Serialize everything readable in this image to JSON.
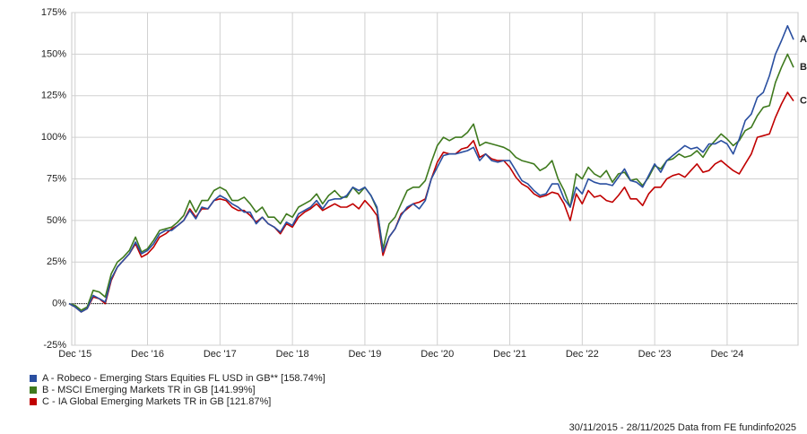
{
  "chart_data": {
    "type": "line",
    "x": [
      "2015-11",
      "2015-12",
      "2016-01",
      "2016-02",
      "2016-03",
      "2016-04",
      "2016-05",
      "2016-06",
      "2016-07",
      "2016-08",
      "2016-09",
      "2016-10",
      "2016-11",
      "2016-12",
      "2017-01",
      "2017-02",
      "2017-03",
      "2017-04",
      "2017-05",
      "2017-06",
      "2017-07",
      "2017-08",
      "2017-09",
      "2017-10",
      "2017-11",
      "2017-12",
      "2018-01",
      "2018-02",
      "2018-03",
      "2018-04",
      "2018-05",
      "2018-06",
      "2018-07",
      "2018-08",
      "2018-09",
      "2018-10",
      "2018-11",
      "2018-12",
      "2019-01",
      "2019-02",
      "2019-03",
      "2019-04",
      "2019-05",
      "2019-06",
      "2019-07",
      "2019-08",
      "2019-09",
      "2019-10",
      "2019-11",
      "2019-12",
      "2020-01",
      "2020-02",
      "2020-03",
      "2020-04",
      "2020-05",
      "2020-06",
      "2020-07",
      "2020-08",
      "2020-09",
      "2020-10",
      "2020-11",
      "2020-12",
      "2021-01",
      "2021-02",
      "2021-03",
      "2021-04",
      "2021-05",
      "2021-06",
      "2021-07",
      "2021-08",
      "2021-09",
      "2021-10",
      "2021-11",
      "2021-12",
      "2022-01",
      "2022-02",
      "2022-03",
      "2022-04",
      "2022-05",
      "2022-06",
      "2022-07",
      "2022-08",
      "2022-09",
      "2022-10",
      "2022-11",
      "2022-12",
      "2023-01",
      "2023-02",
      "2023-03",
      "2023-04",
      "2023-05",
      "2023-06",
      "2023-07",
      "2023-08",
      "2023-09",
      "2023-10",
      "2023-11",
      "2023-12",
      "2024-01",
      "2024-02",
      "2024-03",
      "2024-04",
      "2024-05",
      "2024-06",
      "2024-07",
      "2024-08",
      "2024-09",
      "2024-10",
      "2024-11",
      "2024-12",
      "2025-01",
      "2025-02",
      "2025-03",
      "2025-04",
      "2025-05",
      "2025-06",
      "2025-07",
      "2025-08",
      "2025-09",
      "2025-10",
      "2025-11"
    ],
    "series": [
      {
        "name": "A - Robeco - Emerging Stars Equities FL USD in GB** [158.74%]",
        "label": "A",
        "color": "#2a4fa0",
        "values": [
          0,
          -2,
          -5,
          -3,
          5,
          3,
          1,
          15,
          22,
          26,
          30,
          37,
          30,
          32,
          36,
          42,
          44,
          44,
          47,
          50,
          56,
          51,
          58,
          57,
          62,
          65,
          63,
          60,
          58,
          55,
          55,
          48,
          52,
          48,
          46,
          43,
          49,
          47,
          54,
          56,
          58,
          62,
          57,
          62,
          63,
          63,
          65,
          70,
          68,
          70,
          65,
          58,
          31,
          40,
          45,
          53,
          58,
          60,
          57,
          62,
          75,
          82,
          89,
          90,
          90,
          91,
          92,
          94,
          86,
          90,
          86,
          85,
          86,
          86,
          80,
          74,
          72,
          68,
          65,
          66,
          72,
          72,
          63,
          58,
          70,
          66,
          75,
          73,
          72,
          72,
          71,
          76,
          81,
          74,
          73,
          70,
          77,
          84,
          79,
          86,
          89,
          92,
          95,
          93,
          94,
          91,
          96,
          96,
          98,
          96,
          90,
          99,
          110,
          114,
          124,
          127,
          137,
          150,
          158,
          167,
          158.74
        ]
      },
      {
        "name": "B - MSCI Emerging Markets TR in GB [141.99%]",
        "label": "B",
        "color": "#3f7a1e",
        "values": [
          0,
          -1,
          -4,
          -2,
          8,
          7,
          4,
          18,
          25,
          28,
          32,
          40,
          31,
          33,
          38,
          44,
          45,
          46,
          49,
          53,
          62,
          55,
          62,
          62,
          68,
          70,
          68,
          62,
          62,
          64,
          60,
          55,
          58,
          52,
          52,
          48,
          54,
          52,
          58,
          60,
          62,
          66,
          60,
          65,
          68,
          64,
          64,
          70,
          66,
          70,
          65,
          57,
          33,
          48,
          52,
          60,
          68,
          70,
          70,
          74,
          85,
          95,
          100,
          98,
          100,
          100,
          103,
          108,
          95,
          97,
          96,
          95,
          94,
          92,
          88,
          86,
          85,
          84,
          80,
          82,
          86,
          75,
          68,
          58,
          78,
          75,
          82,
          78,
          76,
          80,
          73,
          78,
          79,
          74,
          75,
          71,
          76,
          83,
          81,
          86,
          87,
          90,
          88,
          89,
          92,
          88,
          94,
          98,
          102,
          99,
          95,
          98,
          104,
          106,
          113,
          118,
          119,
          133,
          142,
          150,
          141.99
        ]
      },
      {
        "name": "C - IA Global Emerging Markets TR in GB [121.87%]",
        "label": "C",
        "color": "#c00000",
        "values": [
          0,
          -2,
          -5,
          -3,
          4,
          3,
          0,
          14,
          22,
          26,
          30,
          36,
          28,
          30,
          34,
          40,
          42,
          45,
          47,
          50,
          57,
          52,
          57,
          57,
          62,
          63,
          62,
          58,
          56,
          56,
          53,
          49,
          52,
          48,
          46,
          42,
          48,
          46,
          52,
          55,
          57,
          60,
          56,
          58,
          60,
          58,
          58,
          60,
          57,
          62,
          58,
          53,
          29,
          40,
          45,
          54,
          57,
          60,
          61,
          63,
          75,
          85,
          91,
          90,
          90,
          93,
          94,
          98,
          88,
          90,
          87,
          86,
          86,
          82,
          76,
          72,
          70,
          66,
          64,
          65,
          67,
          66,
          60,
          50,
          66,
          60,
          68,
          64,
          65,
          62,
          61,
          65,
          70,
          63,
          63,
          59,
          66,
          70,
          70,
          75,
          77,
          78,
          76,
          80,
          84,
          79,
          80,
          84,
          86,
          83,
          80,
          78,
          84,
          90,
          100,
          101,
          102,
          112,
          120,
          127,
          121.87
        ]
      }
    ],
    "xlim": [
      "2015-11",
      "2025-11"
    ],
    "xticks": [
      {
        "value": "2015-12",
        "label": "Dec '15"
      },
      {
        "value": "2016-12",
        "label": "Dec '16"
      },
      {
        "value": "2017-12",
        "label": "Dec '17"
      },
      {
        "value": "2018-12",
        "label": "Dec '18"
      },
      {
        "value": "2019-12",
        "label": "Dec '19"
      },
      {
        "value": "2020-12",
        "label": "Dec '20"
      },
      {
        "value": "2021-12",
        "label": "Dec '21"
      },
      {
        "value": "2022-12",
        "label": "Dec '22"
      },
      {
        "value": "2023-12",
        "label": "Dec '23"
      },
      {
        "value": "2024-12",
        "label": "Dec '24"
      }
    ],
    "ylim": [
      -25,
      175
    ],
    "yticks": [
      {
        "value": -25,
        "label": "-25%"
      },
      {
        "value": 0,
        "label": "0%"
      },
      {
        "value": 25,
        "label": "25%"
      },
      {
        "value": 50,
        "label": "50%"
      },
      {
        "value": 75,
        "label": "75%"
      },
      {
        "value": 100,
        "label": "100%"
      },
      {
        "value": 125,
        "label": "125%"
      },
      {
        "value": 150,
        "label": "150%"
      },
      {
        "value": 175,
        "label": "175%"
      }
    ],
    "grid": true,
    "legend": "bottom-left",
    "footer": "30/11/2015 - 28/11/2025 Data from FE fundinfo2025"
  }
}
